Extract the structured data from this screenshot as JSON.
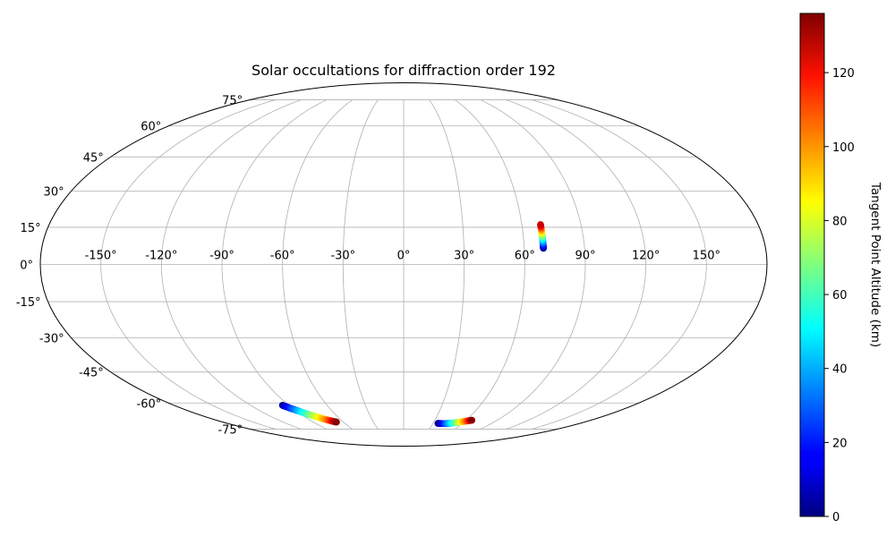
{
  "chart_data": {
    "type": "scatter",
    "projection": "mollweide",
    "title": "Solar occultations for diffraction order 192",
    "xlim": [
      -180,
      180
    ],
    "ylim": [
      -90,
      90
    ],
    "grid": true,
    "lon_tick_values": [
      -150,
      -120,
      -90,
      -60,
      -30,
      0,
      30,
      60,
      90,
      120,
      150
    ],
    "lon_tick_labels": [
      "-150°",
      "-120°",
      "-90°",
      "-60°",
      "-30°",
      "0°",
      "30°",
      "60°",
      "90°",
      "120°",
      "150°"
    ],
    "lat_tick_values": [
      75,
      60,
      45,
      30,
      15,
      0,
      -15,
      -30,
      -45,
      -60,
      -75
    ],
    "lat_tick_labels": [
      "75°",
      "60°",
      "45°",
      "30°",
      "15°",
      "0°",
      "-15°",
      "-30°",
      "-45°",
      "-60°",
      "-75°"
    ],
    "colormap": "jet",
    "colorbar": {
      "label": "Tangent Point Altitude (km)",
      "range": [
        0,
        136
      ],
      "tick_values": [
        0,
        20,
        40,
        60,
        80,
        100,
        120
      ],
      "tick_labels": [
        "0",
        "20",
        "40",
        "60",
        "80",
        "100",
        "120"
      ]
    },
    "series": [
      {
        "lon": [
          -95.0,
          -94.5,
          -93.6,
          -92.5,
          -91.4,
          -90.2,
          -89.0,
          -87.8,
          -86.6,
          -85.3,
          -84.0,
          -82.6,
          -81.2,
          -79.6,
          -78.0,
          -76.4,
          -74.8,
          -73.2,
          -71.8,
          -70.6,
          -69.5,
          -68.5,
          -67.6,
          -66.8
        ],
        "lat": [
          -61.2,
          -61.5,
          -61.9,
          -62.4,
          -62.9,
          -63.4,
          -63.9,
          -64.4,
          -64.9,
          -65.4,
          -65.9,
          -66.4,
          -66.9,
          -67.4,
          -67.9,
          -68.4,
          -68.9,
          -69.3,
          -69.6,
          -69.9,
          -70.1,
          -70.3,
          -70.5,
          -70.6
        ],
        "altitude": [
          0,
          6,
          12,
          18,
          24,
          30,
          36,
          42,
          48,
          54,
          60,
          66,
          72,
          78,
          84,
          90,
          96,
          102,
          108,
          114,
          120,
          126,
          131,
          135
        ]
      },
      {
        "lon": [
          35.0,
          37.0,
          39.0,
          41.0,
          43.0,
          45.0,
          47.0,
          49.0,
          51.0,
          53.0,
          55.0,
          57.0,
          59.0,
          61.0,
          62.7,
          64.3,
          65.7
        ],
        "lat": [
          -71.4,
          -71.45,
          -71.5,
          -71.5,
          -71.5,
          -71.45,
          -71.35,
          -71.2,
          -71.05,
          -70.85,
          -70.65,
          -70.45,
          -70.25,
          -70.05,
          -69.85,
          -69.65,
          -69.5
        ],
        "altitude": [
          0,
          5,
          10,
          18,
          26,
          34,
          42,
          50,
          58,
          66,
          75,
          84,
          93,
          102,
          112,
          122,
          135
        ]
      },
      {
        "lon": [
          69.5,
          69.5,
          69.5,
          69.5,
          69.5,
          69.5,
          69.5,
          69.5,
          69.5,
          69.5,
          69.5,
          69.5,
          69.5,
          69.5,
          69.5
        ],
        "lat": [
          6.5,
          7.1,
          7.7,
          8.4,
          9.1,
          9.8,
          10.5,
          11.2,
          11.9,
          12.6,
          13.3,
          14.0,
          14.7,
          15.4,
          16.1
        ],
        "altitude": [
          0,
          8,
          16,
          25,
          34,
          43,
          52,
          61,
          70,
          79,
          88,
          97,
          106,
          116,
          126
        ]
      }
    ]
  }
}
